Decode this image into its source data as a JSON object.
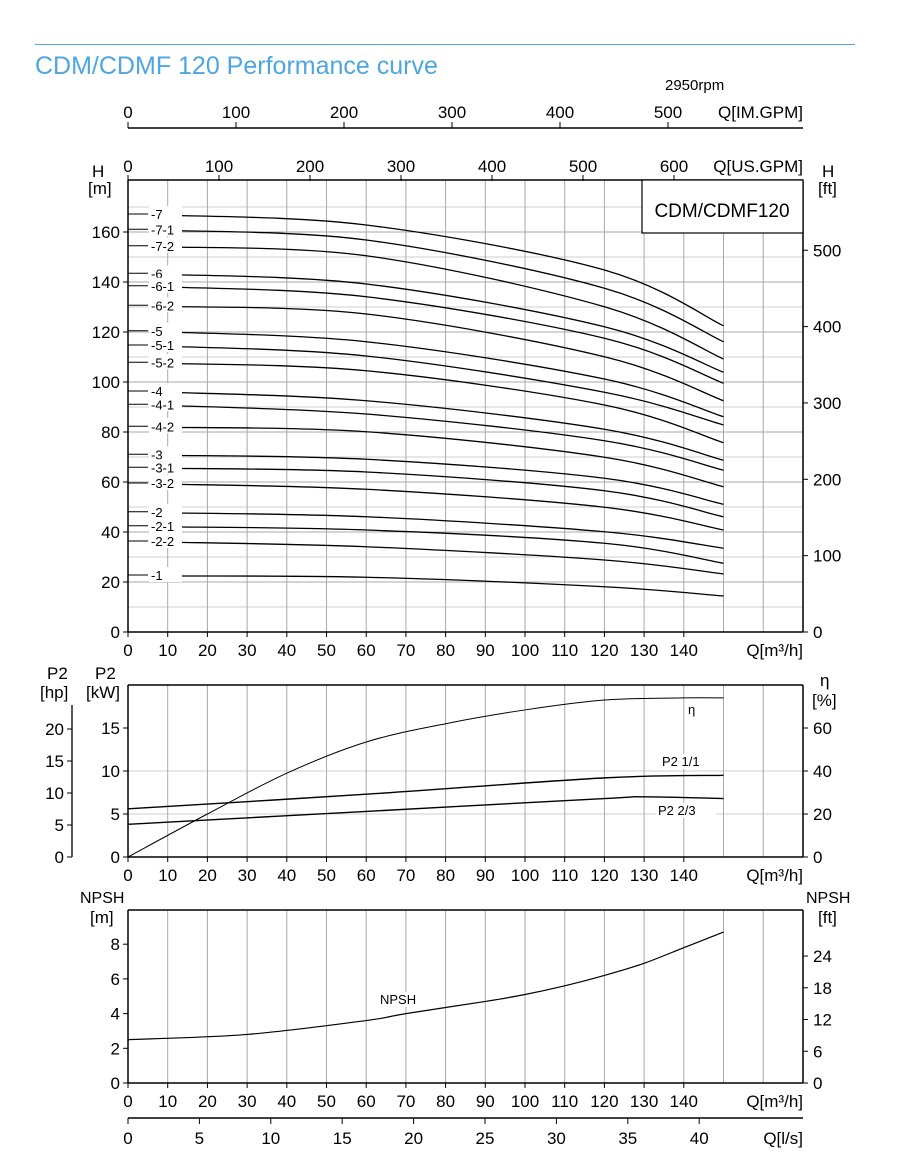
{
  "header": {
    "title": "CDM/CDMF 120 Performance curve",
    "speed": "2950rpm"
  },
  "colors": {
    "title": "#4da6e0",
    "grid": "#a9a9a9",
    "curve": "#000000"
  },
  "chart_data": [
    {
      "type": "line",
      "model_label": "CDM/CDMF120",
      "xlabel": "Q[m³/h]",
      "xticks": [
        0,
        10,
        20,
        30,
        40,
        50,
        60,
        70,
        80,
        90,
        100,
        110,
        120,
        130,
        140
      ],
      "xlim": [
        0,
        170
      ],
      "top_axis_im_gpm": {
        "label": "Q[IM.GPM]",
        "ticks": [
          0,
          100,
          200,
          300,
          400,
          500
        ]
      },
      "top_axis_us_gpm": {
        "label": "Q[US.GPM]",
        "ticks": [
          0,
          100,
          200,
          300,
          400,
          500,
          600
        ]
      },
      "ylabel_left": "H\n[m]",
      "ylabel_left_l1": "H",
      "ylabel_left_l2": "[m]",
      "ylim": [
        0,
        180
      ],
      "yticks": [
        0,
        20,
        40,
        60,
        80,
        100,
        120,
        140,
        160
      ],
      "ylabel_right_l1": "H",
      "ylabel_right_l2": "[ft]",
      "yticks_right": [
        0,
        100,
        200,
        300,
        400,
        500
      ],
      "grid": true,
      "x": [
        8,
        60,
        120,
        150
      ],
      "series": [
        {
          "name": "-7",
          "values": [
            166.8,
            162.8,
            144.8,
            122.5
          ]
        },
        {
          "name": "-7-1",
          "values": [
            160.7,
            156.8,
            137.5,
            116.1
          ]
        },
        {
          "name": "-7-2",
          "values": [
            154.1,
            150.5,
            130.1,
            109.2
          ]
        },
        {
          "name": "-6",
          "values": [
            143.1,
            139.2,
            122.1,
            103.9
          ]
        },
        {
          "name": "-6-1",
          "values": [
            138.1,
            134.1,
            117.5,
            99.5
          ]
        },
        {
          "name": "-6-2",
          "values": [
            130.3,
            127.2,
            110.1,
            92.5
          ]
        },
        {
          "name": "-5",
          "values": [
            120.1,
            116.1,
            101.2,
            86.1
          ]
        },
        {
          "name": "-5-1",
          "values": [
            114.4,
            110.4,
            95.9,
            82.8
          ]
        },
        {
          "name": "-5-2",
          "values": [
            107.5,
            104.5,
            90.8,
            75.7
          ]
        },
        {
          "name": "-4",
          "values": [
            96.0,
            92.5,
            81.1,
            68.7
          ]
        },
        {
          "name": "-4-1",
          "values": [
            90.7,
            87.2,
            76.5,
            64.7
          ]
        },
        {
          "name": "-4-2",
          "values": [
            81.9,
            80.1,
            69.9,
            58.1
          ]
        },
        {
          "name": "-3",
          "values": [
            70.7,
            69.1,
            61.5,
            51.1
          ]
        },
        {
          "name": "-3-1",
          "values": [
            65.5,
            64.0,
            56.5,
            46.1
          ]
        },
        {
          "name": "-3-2",
          "values": [
            59.2,
            57.1,
            49.9,
            40.8
          ]
        },
        {
          "name": "-2",
          "values": [
            47.7,
            46.1,
            40.1,
            33.5
          ]
        },
        {
          "name": "-2-1",
          "values": [
            42.1,
            40.8,
            35.5,
            27.5
          ]
        },
        {
          "name": "-2-2",
          "values": [
            36.0,
            34.1,
            28.8,
            23.2
          ]
        },
        {
          "name": "-1",
          "values": [
            22.4,
            21.9,
            18.1,
            14.4
          ]
        }
      ]
    },
    {
      "type": "line",
      "xlabel": "Q[m³/h]",
      "xticks": [
        0,
        10,
        20,
        30,
        40,
        50,
        60,
        70,
        80,
        90,
        100,
        110,
        120,
        130,
        140
      ],
      "xlim": [
        0,
        170
      ],
      "ylabel_hp_l1": "P2",
      "ylabel_hp_l2": "[hp]",
      "yticks_hp": [
        0,
        5,
        10,
        15,
        20
      ],
      "ylabel_kw_l1": "P2",
      "ylabel_kw_l2": "[kW]",
      "yticks_kw": [
        0,
        5,
        10,
        15
      ],
      "ylim_kw": [
        0,
        20
      ],
      "ylabel_right_l1": "η",
      "ylabel_right_l2": "[%]",
      "yticks_right": [
        0,
        20,
        40,
        60
      ],
      "grid": true,
      "series": [
        {
          "name": "η",
          "axis": "right",
          "x": [
            0,
            20,
            40,
            60,
            80,
            100,
            120,
            140,
            150
          ],
          "values": [
            0,
            20,
            39,
            53.5,
            62,
            68.4,
            73,
            74,
            74
          ]
        },
        {
          "name": "P2 1/1",
          "axis": "kW",
          "x": [
            0,
            60,
            120,
            150
          ],
          "values": [
            5.6,
            7.3,
            9.2,
            9.5
          ]
        },
        {
          "name": "P2 2/3",
          "axis": "kW",
          "x": [
            0,
            60,
            120,
            130,
            150
          ],
          "values": [
            3.8,
            5.3,
            6.8,
            7.0,
            6.8
          ]
        }
      ]
    },
    {
      "type": "line",
      "xlabel": "Q[m³/h]",
      "xticks": [
        0,
        10,
        20,
        30,
        40,
        50,
        60,
        70,
        80,
        90,
        100,
        110,
        120,
        130,
        140
      ],
      "xlim": [
        0,
        170
      ],
      "ylabel_left_l1": "NPSH",
      "ylabel_left_l2": "[m]",
      "yticks": [
        0,
        2,
        4,
        6,
        8
      ],
      "ylim": [
        0,
        10
      ],
      "ylabel_right_l1": "NPSH",
      "ylabel_right_l2": "[ft]",
      "yticks_right": [
        0,
        6,
        12,
        18,
        24
      ],
      "bottom_axis_ls": {
        "label": "Q[l/s]",
        "ticks": [
          0,
          5,
          10,
          15,
          20,
          25,
          30,
          35,
          40
        ]
      },
      "grid": true,
      "series": [
        {
          "name": "NPSH",
          "x": [
            0,
            30,
            60,
            70,
            90,
            100,
            110,
            120,
            130,
            140,
            150
          ],
          "values": [
            2.5,
            2.8,
            3.6,
            4.0,
            4.7,
            5.1,
            5.6,
            6.2,
            6.9,
            7.8,
            8.7
          ]
        }
      ]
    }
  ]
}
